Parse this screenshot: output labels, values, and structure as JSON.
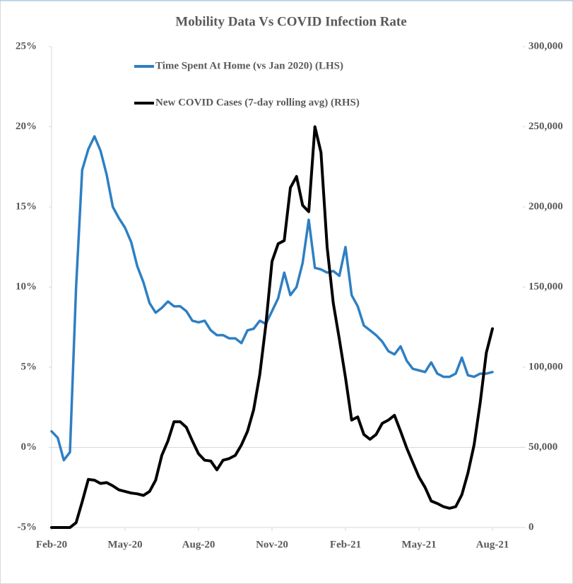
{
  "chart_data": {
    "type": "line",
    "title": "Mobility Data Vs COVID Infection Rate",
    "categories": [
      "Feb-20",
      null,
      null,
      null,
      null,
      null,
      null,
      null,
      null,
      null,
      null,
      null,
      "May-20",
      null,
      null,
      null,
      null,
      null,
      null,
      null,
      null,
      null,
      null,
      null,
      "Aug-20",
      null,
      null,
      null,
      null,
      null,
      null,
      null,
      null,
      null,
      null,
      null,
      "Nov-20",
      null,
      null,
      null,
      null,
      null,
      null,
      null,
      null,
      null,
      null,
      null,
      "Feb-21",
      null,
      null,
      null,
      null,
      null,
      null,
      null,
      null,
      null,
      null,
      null,
      "May-21",
      null,
      null,
      null,
      null,
      null,
      null,
      null,
      null,
      null,
      null,
      null,
      "Aug-21"
    ],
    "series": [
      {
        "name": "Time Spent At Home (vs Jan 2020)  (LHS)",
        "color": "#2e7fc3",
        "axis": "y",
        "values": [
          1.0,
          0.6,
          -0.8,
          -0.3,
          10,
          17.3,
          18.6,
          19.4,
          18.5,
          17,
          15,
          14.3,
          13.7,
          12.8,
          11.3,
          10.3,
          9.0,
          8.4,
          8.7,
          9.1,
          8.8,
          8.8,
          8.5,
          7.9,
          7.8,
          7.9,
          7.3,
          7.0,
          7.0,
          6.8,
          6.8,
          6.5,
          7.3,
          7.4,
          7.9,
          7.7,
          8.5,
          9.3,
          10.9,
          9.5,
          10.0,
          11.5,
          14.2,
          11.2,
          11.1,
          10.9,
          11.0,
          10.7,
          12.5,
          9.5,
          8.8,
          7.6,
          7.3,
          7.0,
          6.6,
          6.0,
          5.8,
          6.3,
          5.4,
          4.9,
          4.8,
          4.7,
          5.3,
          4.6,
          4.4,
          4.4,
          4.6,
          5.6,
          4.5,
          4.4,
          4.6,
          4.6,
          4.7
        ]
      },
      {
        "name": "New COVID Cases (7-day rolling avg) (RHS)",
        "color": "#000000",
        "axis": "y2",
        "values": [
          0,
          0,
          0,
          0,
          3000,
          16000,
          30000,
          29500,
          27500,
          28000,
          26000,
          23500,
          22500,
          21500,
          21000,
          20000,
          22500,
          29500,
          45000,
          54000,
          66000,
          66000,
          62500,
          54000,
          46000,
          42000,
          41500,
          36000,
          42000,
          43000,
          45000,
          51500,
          60000,
          73500,
          95500,
          126500,
          166000,
          177000,
          179000,
          212000,
          219000,
          201000,
          197000,
          250000,
          234000,
          175000,
          140000,
          117500,
          93500,
          67000,
          69000,
          58000,
          55000,
          58000,
          65000,
          67000,
          70000,
          60000,
          49500,
          40500,
          31500,
          25000,
          16500,
          15000,
          13000,
          12000,
          13000,
          20500,
          34000,
          51500,
          78000,
          109000,
          124000
        ]
      }
    ],
    "ylim": [
      -5,
      25
    ],
    "yticks": [
      {
        "value": -5,
        "label": "-5%"
      },
      {
        "value": 0,
        "label": "0%"
      },
      {
        "value": 5,
        "label": "5%"
      },
      {
        "value": 10,
        "label": "10%"
      },
      {
        "value": 15,
        "label": "15%"
      },
      {
        "value": 20,
        "label": "20%"
      },
      {
        "value": 25,
        "label": "25%"
      }
    ],
    "y2lim": [
      0,
      300000
    ],
    "y2ticks": [
      0,
      {
        "value": 50000,
        "label": "50,000"
      },
      {
        "value": 100000,
        "label": "100,000"
      },
      {
        "value": 150000,
        "label": "150,000"
      },
      {
        "value": 200000,
        "label": "200,000"
      },
      {
        "value": 250000,
        "label": "250,000"
      },
      {
        "value": 300000,
        "label": "300,000"
      }
    ],
    "legend": "top"
  }
}
